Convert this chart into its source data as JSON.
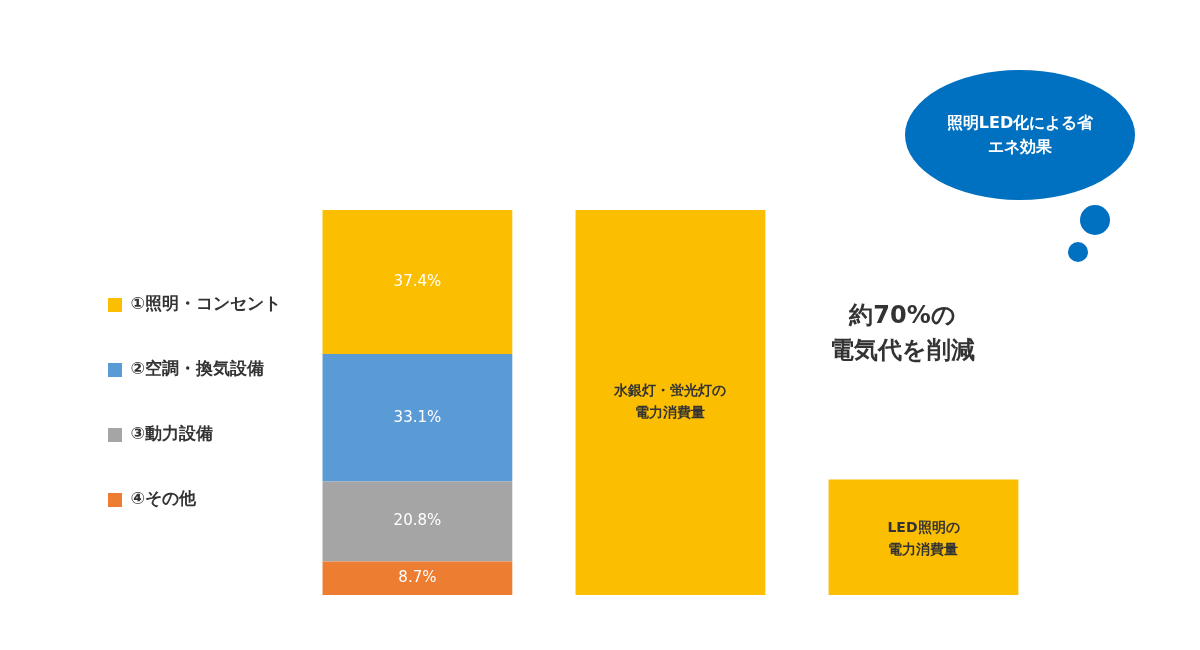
{
  "chart_data": {
    "type": "bar",
    "stacked": true,
    "categories": [
      null,
      "水銀灯・蛍光灯の電力消費量",
      "LED照明の電力消費量"
    ],
    "series": [
      {
        "name": "④その他",
        "color": "#ed7d31",
        "values": [
          8.7,
          null,
          null
        ],
        "value_labels": [
          "8.7%",
          null,
          null
        ]
      },
      {
        "name": "③動力設備",
        "color": "#a5a5a5",
        "values": [
          20.8,
          null,
          null
        ],
        "value_labels": [
          "20.8%",
          null,
          null
        ]
      },
      {
        "name": "②空調・換気設備",
        "color": "#5b9bd5",
        "values": [
          33.1,
          null,
          null
        ],
        "value_labels": [
          "33.1%",
          null,
          null
        ]
      },
      {
        "name": "①照明・コンセント",
        "color": "#fbbe00",
        "values": [
          37.4,
          null,
          null
        ],
        "value_labels": [
          "37.4%",
          null,
          null
        ]
      },
      {
        "color": "#fbbe00",
        "values": [
          null,
          100,
          30
        ]
      }
    ],
    "ylim": [
      0,
      100
    ],
    "tick_labels": false,
    "legend": "left",
    "annotations": [
      "照明LED化による省エネ効果",
      "約70%の電気代を削減"
    ]
  }
}
